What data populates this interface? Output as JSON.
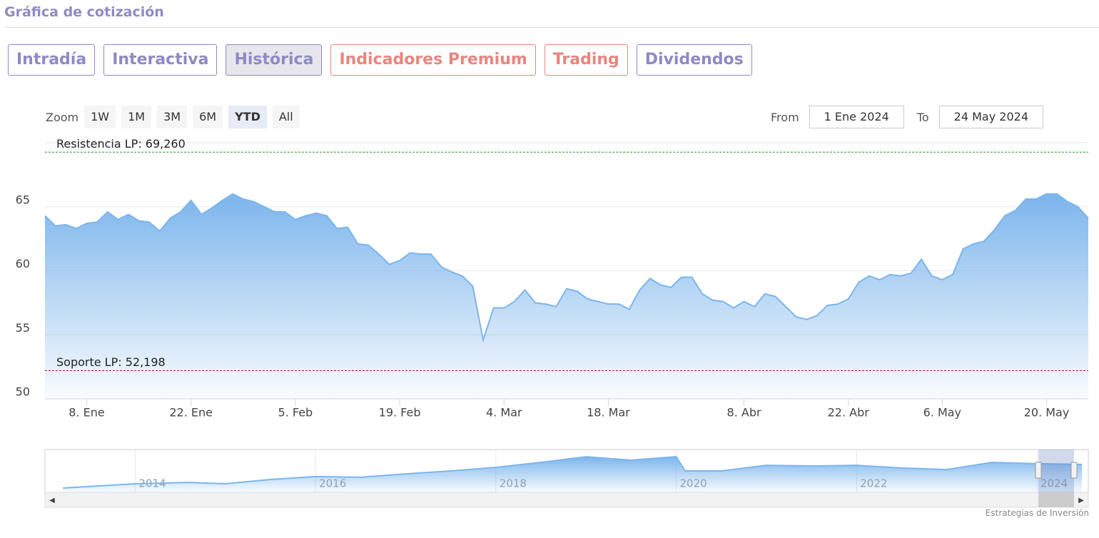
{
  "header": {
    "title": "Gráfica de cotización"
  },
  "tabs": [
    "Intradía",
    "Interactiva",
    "Histórica",
    "Indicadores Premium",
    "Trading",
    "Dividendos"
  ],
  "zoom": {
    "label": "Zoom",
    "buttons": [
      "1W",
      "1M",
      "3M",
      "6M",
      "YTD",
      "All"
    ]
  },
  "range": {
    "from_label": "From",
    "from": "1 Ene 2024",
    "to_label": "To",
    "to": "24 May 2024"
  },
  "credits": "Estrategias de Inversión",
  "chart_data": [
    {
      "type": "area",
      "color": "#7cb5ec",
      "categories": [
        null,
        null,
        null,
        null,
        "8. Ene",
        null,
        null,
        null,
        null,
        null,
        null,
        null,
        null,
        null,
        "22. Ene",
        null,
        null,
        null,
        null,
        null,
        null,
        null,
        null,
        null,
        "5. Feb",
        null,
        null,
        null,
        null,
        null,
        null,
        null,
        null,
        null,
        "19. Feb",
        null,
        null,
        null,
        null,
        null,
        null,
        null,
        null,
        null,
        "4. Mar",
        null,
        null,
        null,
        null,
        null,
        null,
        null,
        null,
        null,
        "18. Mar",
        null,
        null,
        null,
        null,
        null,
        null,
        null,
        null,
        null,
        null,
        null,
        null,
        "8. Abr",
        null,
        null,
        null,
        null,
        null,
        null,
        null,
        null,
        null,
        "22. Abr",
        null,
        null,
        null,
        null,
        null,
        null,
        null,
        null,
        "6. May",
        null,
        null,
        null,
        null,
        null,
        null,
        null,
        null,
        null,
        "20. May",
        null,
        null,
        null,
        null
      ],
      "values": [
        64.3,
        63.5,
        63.6,
        63.3,
        63.7,
        63.8,
        64.6,
        64.0,
        64.4,
        63.9,
        63.8,
        63.1,
        64.1,
        64.6,
        65.5,
        64.4,
        64.9,
        65.5,
        66.0,
        65.6,
        65.4,
        65.0,
        64.6,
        64.6,
        64.0,
        64.3,
        64.5,
        64.3,
        63.3,
        63.4,
        62.1,
        62.0,
        61.3,
        60.5,
        60.8,
        61.4,
        61.3,
        61.3,
        60.3,
        59.9,
        59.6,
        58.8,
        54.6,
        57.1,
        57.1,
        57.6,
        58.5,
        57.5,
        57.4,
        57.2,
        58.6,
        58.4,
        57.8,
        57.6,
        57.4,
        57.4,
        57.0,
        58.5,
        59.4,
        58.9,
        58.7,
        59.5,
        59.5,
        58.2,
        57.7,
        57.6,
        57.1,
        57.6,
        57.2,
        58.2,
        58.0,
        57.2,
        56.4,
        56.2,
        56.5,
        57.3,
        57.4,
        57.8,
        59.1,
        59.6,
        59.3,
        59.7,
        59.6,
        59.8,
        60.9,
        59.6,
        59.3,
        59.7,
        61.7,
        62.1,
        62.3,
        63.2,
        64.3,
        64.7,
        65.6,
        65.6,
        66.0,
        66.0,
        65.4,
        65.0,
        64.1
      ],
      "ylim": [
        50,
        70
      ],
      "yticks": [
        50,
        55,
        60,
        65
      ],
      "grid": true,
      "plot_lines": [
        {
          "value": 69.26,
          "label": "Resistencia LP: 69,260",
          "color": "#2e8b2e"
        },
        {
          "value": 52.198,
          "label": "Soporte LP: 52,198",
          "color": "#9b1c1c"
        }
      ]
    },
    {
      "type": "area",
      "color": "#7cb5ec",
      "x": [
        2013.2,
        2014.0,
        2014.6,
        2015.0,
        2015.5,
        2016.0,
        2016.5,
        2017.0,
        2017.5,
        2018.0,
        2018.5,
        2019.0,
        2019.5,
        2020.0,
        2020.1,
        2020.5,
        2021.0,
        2021.5,
        2022.0,
        2022.5,
        2023.0,
        2023.5,
        2024.0,
        2024.5
      ],
      "values": [
        47.5,
        50,
        50.8,
        50,
        52.5,
        54.2,
        53.8,
        55.8,
        57.5,
        59.6,
        62.5,
        65.8,
        63.8,
        65.8,
        57.5,
        57.5,
        60.8,
        60.4,
        60.8,
        59.2,
        58.3,
        62.5,
        61.7,
        61.3
      ],
      "xlim": [
        2013,
        2024.57
      ],
      "xticks": [
        2014,
        2016,
        2018,
        2020,
        2022,
        2024
      ],
      "ylim": [
        45,
        70
      ]
    }
  ]
}
